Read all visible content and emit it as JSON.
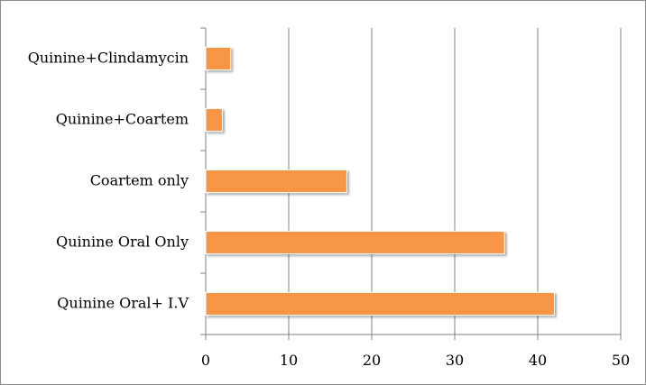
{
  "chart_data": {
    "type": "bar",
    "orientation": "horizontal",
    "title": "",
    "xlabel": "",
    "ylabel": "",
    "categories": [
      "Quinine+Clindamycin",
      "Quinine+Coartem",
      "Coartem only",
      "Quinine Oral Only",
      "Quinine Oral+ I.V"
    ],
    "values": [
      3,
      2,
      17,
      36,
      42
    ],
    "xlim": [
      0,
      50
    ],
    "xticks": [
      0,
      10,
      20,
      30,
      40,
      50
    ],
    "grid": "vertical",
    "legend": "none",
    "colors": {
      "bar": "#f79646",
      "bar_edge": "#ffffff",
      "grid": "#808080",
      "axis": "#808080"
    }
  }
}
